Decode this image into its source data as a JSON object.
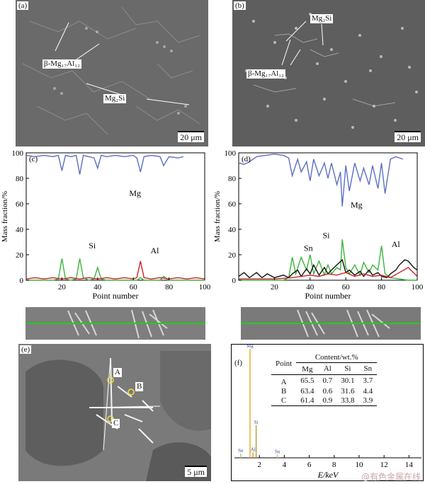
{
  "panels": {
    "a": {
      "label": "(a)",
      "scale": "20 μm",
      "annotations": [
        "β-Mg₁₇Al₁₂",
        "Mg₂Si"
      ]
    },
    "b": {
      "label": "(b)",
      "scale": "20 μm",
      "annotations": [
        "Mg₂Si",
        "β-Mg₁₇Al₁₂"
      ]
    },
    "e": {
      "label": "(e)",
      "scale": "5 μm",
      "points": [
        "A",
        "B",
        "C"
      ]
    },
    "f": {
      "label": "(f)"
    }
  },
  "watermark": "@有色金属在线",
  "chart_data": [
    {
      "type": "line",
      "id": "c",
      "panel_label": "(c)",
      "xlabel": "Point number",
      "ylabel": "Mass fraction/%",
      "xlim": [
        0,
        100
      ],
      "ylim": [
        0,
        100
      ],
      "xticks": [
        "20",
        "40",
        "60",
        "80",
        "100"
      ],
      "yticks": [
        "0",
        "20",
        "40",
        "60",
        "80",
        "100"
      ],
      "series": [
        {
          "name": "Mg",
          "color": "#5b6fc4",
          "x": [
            0,
            5,
            10,
            15,
            18,
            20,
            22,
            25,
            28,
            30,
            32,
            35,
            38,
            40,
            42,
            45,
            50,
            55,
            60,
            62,
            64,
            66,
            70,
            75,
            77,
            80,
            85,
            88
          ],
          "y": [
            98,
            97,
            98,
            97,
            98,
            86,
            98,
            97,
            98,
            83,
            98,
            97,
            96,
            88,
            98,
            97,
            98,
            97,
            98,
            96,
            85,
            97,
            98,
            97,
            90,
            97,
            96,
            97
          ]
        },
        {
          "name": "Si",
          "color": "#3cb43c",
          "x": [
            0,
            5,
            10,
            15,
            18,
            20,
            22,
            25,
            28,
            30,
            32,
            35,
            38,
            40,
            42,
            45,
            50,
            55,
            60,
            62,
            64,
            66,
            70,
            75,
            77,
            80,
            85,
            90,
            95,
            100
          ],
          "y": [
            0,
            0,
            0,
            0,
            1,
            17,
            1,
            0,
            1,
            17,
            2,
            0,
            1,
            10,
            1,
            0,
            0,
            0,
            0,
            0,
            2,
            0,
            0,
            0,
            3,
            0,
            0,
            0,
            0,
            0
          ]
        },
        {
          "name": "Al",
          "color": "#cc2222",
          "x": [
            0,
            5,
            10,
            15,
            20,
            25,
            30,
            35,
            40,
            45,
            50,
            55,
            60,
            62,
            64,
            66,
            70,
            75,
            80,
            85,
            90,
            95,
            100
          ],
          "y": [
            1,
            2,
            1,
            2,
            1,
            2,
            1,
            2,
            1,
            2,
            1,
            2,
            1,
            2,
            15,
            2,
            1,
            2,
            1,
            2,
            1,
            2,
            1
          ]
        }
      ],
      "labels": [
        {
          "text": "Mg",
          "x": 61,
          "y": 66
        },
        {
          "text": "Si",
          "x": 37,
          "y": 25
        },
        {
          "text": "Al",
          "x": 72,
          "y": 21
        }
      ]
    },
    {
      "type": "line",
      "id": "d",
      "panel_label": "(d)",
      "xlabel": "Point number",
      "ylabel": "Mass fraction/%",
      "xlim": [
        0,
        100
      ],
      "ylim": [
        0,
        100
      ],
      "xticks": [
        "20",
        "40",
        "60",
        "80",
        "100"
      ],
      "yticks": [
        "0",
        "20",
        "40",
        "60",
        "80",
        "100"
      ],
      "series": [
        {
          "name": "Mg",
          "color": "#5b6fc4",
          "x": [
            0,
            3,
            6,
            10,
            15,
            20,
            25,
            28,
            30,
            33,
            35,
            38,
            40,
            42,
            45,
            48,
            50,
            52,
            55,
            57,
            58,
            60,
            62,
            65,
            68,
            70,
            73,
            75,
            78,
            80,
            82,
            85,
            88,
            92
          ],
          "y": [
            92,
            91,
            93,
            97,
            98,
            99,
            98,
            96,
            82,
            95,
            85,
            93,
            78,
            95,
            82,
            92,
            80,
            92,
            75,
            85,
            58,
            90,
            70,
            92,
            78,
            88,
            75,
            90,
            72,
            92,
            68,
            95,
            97,
            95
          ]
        },
        {
          "name": "Si",
          "color": "#3cb43c",
          "x": [
            0,
            5,
            10,
            15,
            20,
            25,
            28,
            30,
            32,
            35,
            38,
            40,
            42,
            45,
            48,
            50,
            52,
            55,
            57,
            58,
            60,
            62,
            65,
            68,
            70,
            73,
            75,
            78,
            80,
            82,
            85,
            90,
            95,
            100
          ],
          "y": [
            0,
            0,
            0,
            0,
            0,
            0,
            2,
            18,
            5,
            18,
            8,
            20,
            5,
            15,
            4,
            12,
            5,
            10,
            8,
            32,
            10,
            5,
            12,
            4,
            14,
            6,
            12,
            8,
            27,
            5,
            2,
            1,
            0,
            0
          ]
        },
        {
          "name": "Sn",
          "color": "#111111",
          "x": [
            0,
            3,
            6,
            10,
            13,
            16,
            20,
            25,
            28,
            30,
            33,
            35,
            38,
            40,
            42,
            45,
            48,
            50,
            52,
            55,
            58,
            60,
            62,
            65,
            68,
            70,
            73,
            75,
            78,
            80,
            83,
            85,
            88,
            90,
            93,
            95,
            98,
            100
          ],
          "y": [
            3,
            6,
            2,
            6,
            2,
            5,
            2,
            4,
            2,
            5,
            8,
            3,
            9,
            5,
            12,
            4,
            10,
            5,
            8,
            12,
            16,
            6,
            8,
            4,
            7,
            3,
            8,
            4,
            6,
            3,
            2,
            5,
            8,
            12,
            16,
            15,
            10,
            8
          ]
        },
        {
          "name": "Al",
          "color": "#cc2222",
          "x": [
            0,
            5,
            10,
            20,
            30,
            35,
            40,
            45,
            50,
            55,
            60,
            65,
            70,
            75,
            80,
            85,
            90,
            95,
            100
          ],
          "y": [
            1,
            1,
            1,
            1,
            2,
            3,
            4,
            3,
            5,
            4,
            6,
            3,
            5,
            3,
            4,
            2,
            6,
            10,
            3
          ]
        }
      ],
      "labels": [
        {
          "text": "Mg",
          "x": 66,
          "y": 57
        },
        {
          "text": "Si",
          "x": 49,
          "y": 33
        },
        {
          "text": "Sn",
          "x": 39,
          "y": 23
        },
        {
          "text": "Al",
          "x": 88,
          "y": 26
        }
      ]
    },
    {
      "type": "bar",
      "id": "f",
      "xlabel": "E/keV",
      "xlim": [
        0,
        15
      ],
      "xticks": [
        "2",
        "4",
        "6",
        "8",
        "10",
        "12",
        "14"
      ],
      "peaks": [
        {
          "label": "Mg",
          "energy": 1.25,
          "height": 100,
          "color": "#e8b030"
        },
        {
          "label": "Si",
          "energy": 1.74,
          "height": 30,
          "color": "#b8a040"
        },
        {
          "label": "Al",
          "energy": 1.49,
          "height": 5,
          "color": "#c0b040"
        },
        {
          "label": "Sn",
          "energy": 0.5,
          "height": 4,
          "color": "#c0c080"
        },
        {
          "label": "Sn",
          "energy": 3.44,
          "height": 3,
          "color": "#c0c080"
        }
      ]
    }
  ],
  "table": {
    "header_top": "Content/wt.%",
    "header_point": "Point",
    "columns": [
      "Mg",
      "Al",
      "Si",
      "Sn"
    ],
    "rows": [
      {
        "point": "A",
        "values": [
          "65.5",
          "0.7",
          "30.1",
          "3.7"
        ]
      },
      {
        "point": "B",
        "values": [
          "63.4",
          "0.6",
          "31.6",
          "4.4"
        ]
      },
      {
        "point": "C",
        "values": [
          "61.4",
          "0.9",
          "33.8",
          "3.9"
        ]
      }
    ]
  }
}
